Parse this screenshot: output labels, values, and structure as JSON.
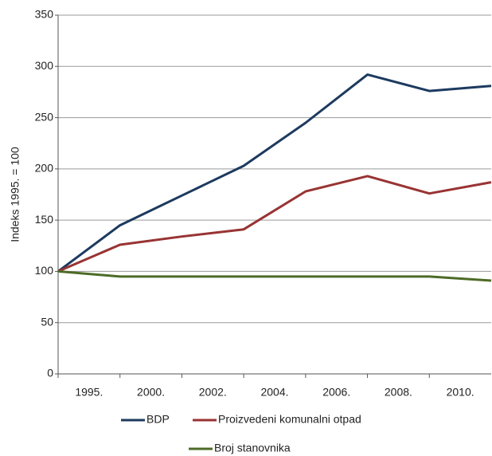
{
  "chart_data": {
    "type": "line",
    "y_label": "Indeks 1995. = 100",
    "categories": [
      "1995.",
      "2000.",
      "2002.",
      "2004.",
      "2006.",
      "2008.",
      "2010.",
      null
    ],
    "series": [
      {
        "name": "BDP",
        "color": "#1d3a5f",
        "values": [
          100,
          145,
          174,
          203,
          245,
          292,
          276,
          281
        ]
      },
      {
        "name": "Proizvedeni komunalni otpad",
        "color": "#993333",
        "values": [
          100,
          126,
          134,
          141,
          178,
          193,
          176,
          187
        ]
      },
      {
        "name": "Broj stanovnika",
        "color": "#4d6b27",
        "values": [
          100,
          95,
          95,
          95,
          95,
          95,
          95,
          91
        ]
      }
    ],
    "ylim": [
      0,
      350
    ],
    "yticks": [
      0,
      50,
      100,
      150,
      200,
      250,
      300,
      350
    ],
    "grid": true
  }
}
